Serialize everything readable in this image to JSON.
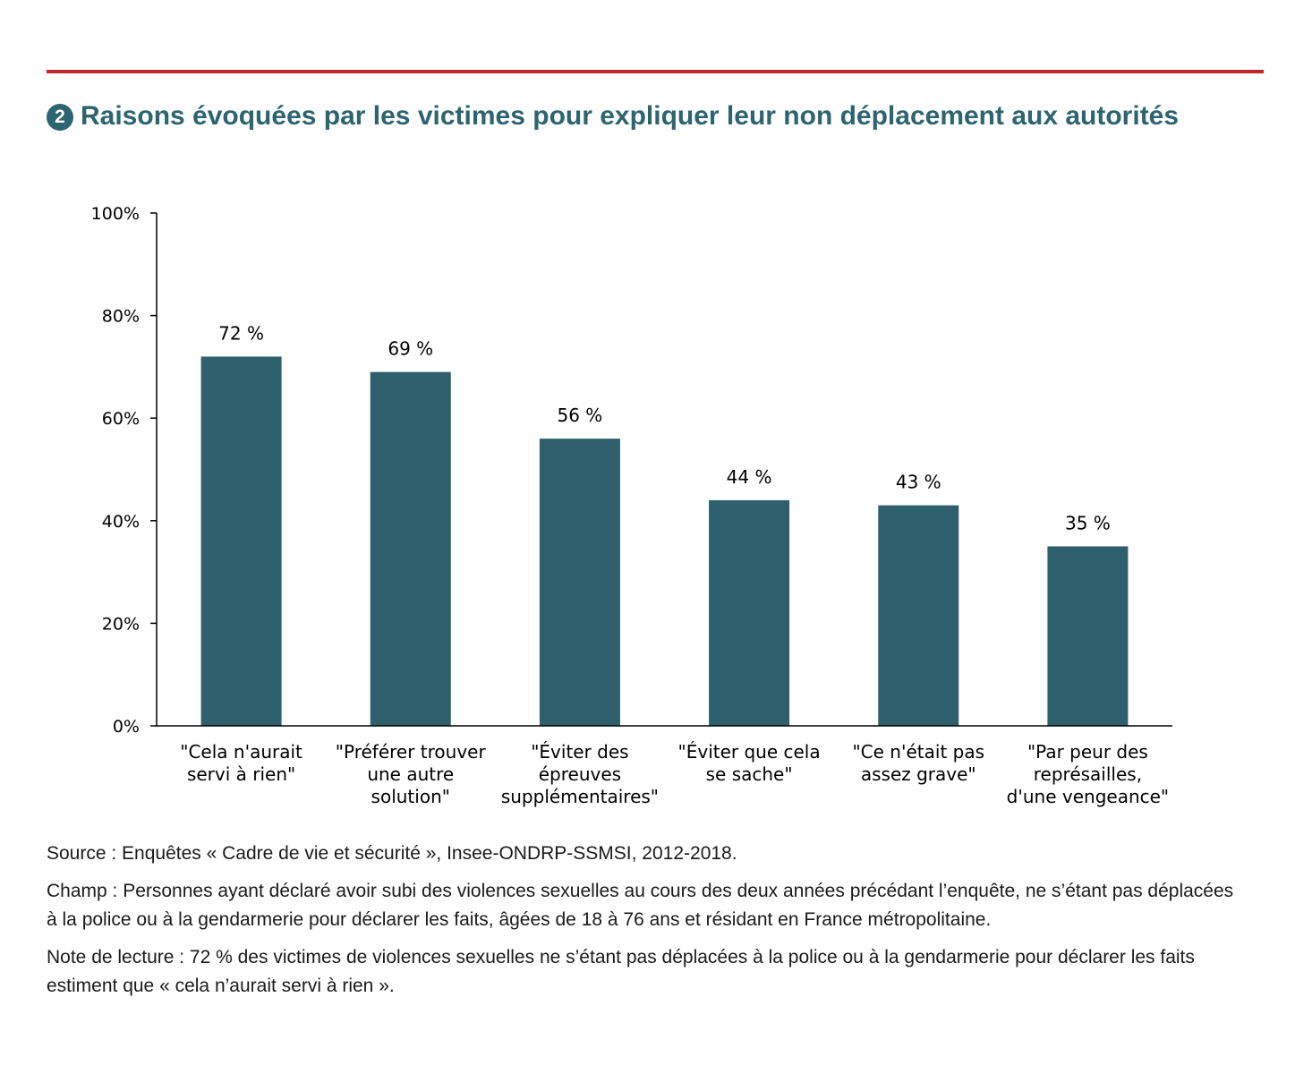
{
  "header": {
    "number": "2",
    "title": "Raisons évoquées par les victimes pour expliquer leur non déplacement aux autorités"
  },
  "colors": {
    "bar": "#2d606c",
    "rule": "#c0282d",
    "title": "#2c6470"
  },
  "chart_data": {
    "type": "bar",
    "title": "Raisons évoquées par les victimes pour expliquer leur non déplacement aux autorités",
    "xlabel": "",
    "ylabel": "",
    "ylim": [
      0,
      100
    ],
    "yticks": [
      "0%",
      "20%",
      "40%",
      "60%",
      "80%",
      "100%"
    ],
    "grid": false,
    "categories": [
      [
        "\"Cela n'aurait",
        "servi à rien\""
      ],
      [
        "\"Préférer trouver",
        "une autre",
        "solution\""
      ],
      [
        "\"Éviter des",
        "épreuves",
        "supplémentaires\""
      ],
      [
        "\"Éviter que cela",
        "se sache\""
      ],
      [
        "\"Ce n'était pas",
        "assez grave\""
      ],
      [
        "\"Par peur des",
        "représailles,",
        "d'une vengeance\""
      ]
    ],
    "values": [
      72,
      69,
      56,
      44,
      43,
      35
    ],
    "value_labels": [
      "72 %",
      "69 %",
      "56 %",
      "44 %",
      "43 %",
      "35 %"
    ]
  },
  "notes": {
    "source": "Source : Enquêtes « Cadre de vie et sécurité », Insee-ONDRP-SSMSI, 2012-2018.",
    "champ": "Champ : Personnes ayant déclaré avoir subi des violences sexuelles au cours des deux années précédant l’enquête, ne s’étant pas déplacées à la police ou à la gendarmerie pour déclarer les faits, âgées de 18 à 76 ans et résidant en France métropolitaine.",
    "lecture": "Note de lecture : 72 % des victimes de violences sexuelles ne s’étant pas déplacées à la police ou à la gendarmerie pour déclarer les faits estiment que « cela n’aurait servi à rien »."
  }
}
